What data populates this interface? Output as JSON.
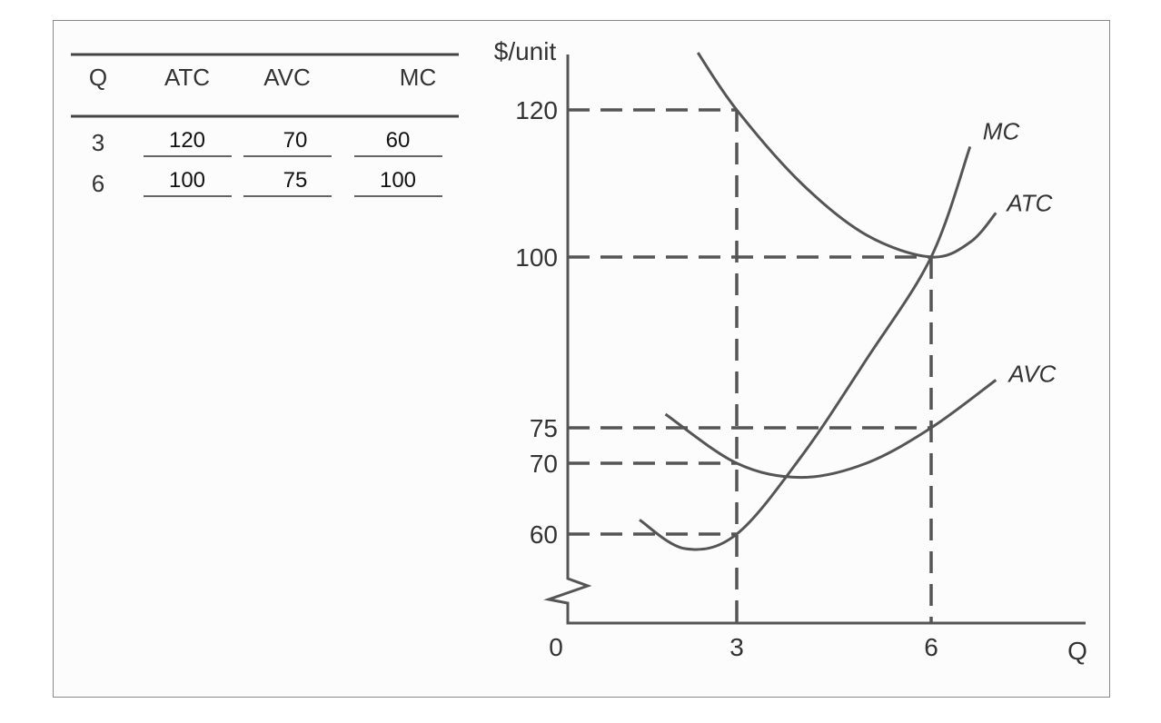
{
  "table": {
    "headers": [
      "Q",
      "ATC",
      "AVC",
      "MC"
    ],
    "rows": [
      {
        "q": "3",
        "atc": "120",
        "avc": "70",
        "mc": "60"
      },
      {
        "q": "6",
        "atc": "100",
        "avc": "75",
        "mc": "100"
      }
    ]
  },
  "chart_data": {
    "type": "line",
    "ylabel": "$/unit",
    "xlabel": "Q",
    "origin_label": "0",
    "x_ticks": [
      3,
      6
    ],
    "y_ticks": [
      60,
      70,
      75,
      100,
      120
    ],
    "axis_break": true,
    "series": [
      {
        "name": "MC",
        "points": [
          [
            1.5,
            62
          ],
          [
            2.2,
            57
          ],
          [
            3,
            60
          ],
          [
            4,
            71
          ],
          [
            5,
            85
          ],
          [
            6,
            100
          ],
          [
            6.6,
            115
          ]
        ]
      },
      {
        "name": "ATC",
        "points": [
          [
            2.4,
            131
          ],
          [
            3,
            120
          ],
          [
            4,
            110
          ],
          [
            5,
            103
          ],
          [
            6,
            100
          ],
          [
            6.6,
            102
          ],
          [
            7,
            106
          ]
        ]
      },
      {
        "name": "AVC",
        "points": [
          [
            1.9,
            77
          ],
          [
            3,
            70
          ],
          [
            4,
            68
          ],
          [
            5,
            70
          ],
          [
            6,
            75
          ],
          [
            7,
            82
          ]
        ]
      }
    ],
    "dashed_guides": [
      {
        "x": 3,
        "y": 120
      },
      {
        "x": 3,
        "y": 70
      },
      {
        "x": 3,
        "y": 60
      },
      {
        "x": 6,
        "y": 100
      },
      {
        "x": 6,
        "y": 75
      }
    ]
  }
}
